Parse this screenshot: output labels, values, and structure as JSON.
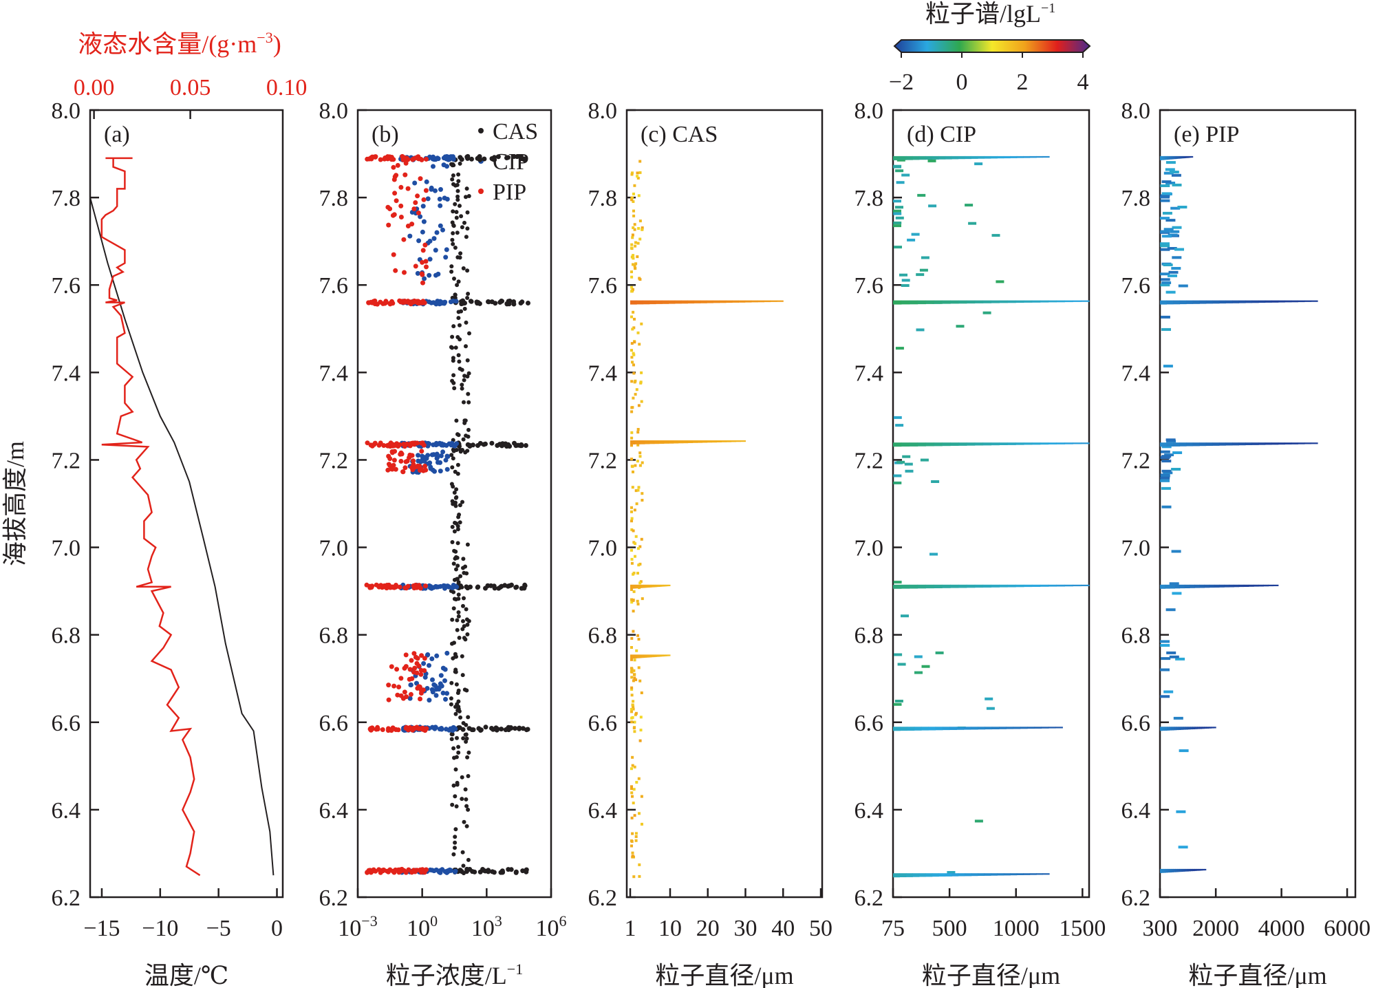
{
  "figure": {
    "ylabel": "海拔高度/m",
    "y_ticks": [
      "8.0",
      "7.8",
      "7.6",
      "7.4",
      "7.2",
      "7.0",
      "6.8",
      "6.6",
      "6.4",
      "6.2"
    ],
    "colorbar": {
      "title": "粒子谱/lgL",
      "title_sup": "−1",
      "ticks": [
        "−2",
        "0",
        "2",
        "4"
      ],
      "range": [
        -2,
        4
      ],
      "colors": [
        "#1f3f99",
        "#2aa8e0",
        "#2fa84f",
        "#f4e82a",
        "#f0a21c",
        "#e0201c",
        "#4b2a8c"
      ]
    }
  },
  "chart_data": [
    {
      "id": "a",
      "type": "line",
      "panel_label": "(a)",
      "xlabel": "温度/℃",
      "x_ticks": [
        "−15",
        "−10",
        "−5",
        "0"
      ],
      "xlim": [
        -16,
        0.5
      ],
      "ylim": [
        6.2,
        8.0
      ],
      "top_axis": {
        "label": "液态水含量/(g·m",
        "label_sup": "−3",
        "label_end": ")",
        "ticks": [
          "0.00",
          "0.05",
          "0.10"
        ],
        "xlim": [
          -0.002,
          0.098
        ],
        "color": "#e2231a"
      },
      "series": [
        {
          "name": "温度",
          "color": "#231f20",
          "points": [
            [
              -16,
              7.8
            ],
            [
              -14.5,
              7.65
            ],
            [
              -13,
              7.52
            ],
            [
              -11.5,
              7.4
            ],
            [
              -10,
              7.3
            ],
            [
              -8.8,
              7.24
            ],
            [
              -7.5,
              7.15
            ],
            [
              -6.3,
              7.02
            ],
            [
              -5.3,
              6.91
            ],
            [
              -4.4,
              6.78
            ],
            [
              -3,
              6.62
            ],
            [
              -2,
              6.58
            ],
            [
              -1.3,
              6.45
            ],
            [
              -0.6,
              6.35
            ],
            [
              -0.3,
              6.25
            ]
          ]
        },
        {
          "name": "液态水含量",
          "color": "#e2231a",
          "axis": "top",
          "points": [
            [
              0.006,
              7.89
            ],
            [
              0.02,
              7.89
            ],
            [
              0.01,
              7.89
            ],
            [
              0.01,
              7.87
            ],
            [
              0.016,
              7.86
            ],
            [
              0.016,
              7.82
            ],
            [
              0.012,
              7.82
            ],
            [
              0.012,
              7.78
            ],
            [
              0.01,
              7.77
            ],
            [
              0.006,
              7.76
            ],
            [
              0.004,
              7.75
            ],
            [
              0.004,
              7.71
            ],
            [
              0.008,
              7.7
            ],
            [
              0.016,
              7.68
            ],
            [
              0.016,
              7.65
            ],
            [
              0.012,
              7.64
            ],
            [
              0.015,
              7.63
            ],
            [
              0.01,
              7.62
            ],
            [
              0.008,
              7.59
            ],
            [
              0.008,
              7.57
            ],
            [
              0.012,
              7.565
            ],
            [
              0.006,
              7.56
            ],
            [
              0.016,
              7.56
            ],
            [
              0.01,
              7.55
            ],
            [
              0.014,
              7.53
            ],
            [
              0.016,
              7.49
            ],
            [
              0.012,
              7.48
            ],
            [
              0.012,
              7.42
            ],
            [
              0.02,
              7.39
            ],
            [
              0.016,
              7.37
            ],
            [
              0.016,
              7.33
            ],
            [
              0.02,
              7.31
            ],
            [
              0.014,
              7.3
            ],
            [
              0.012,
              7.26
            ],
            [
              0.025,
              7.24
            ],
            [
              0.004,
              7.235
            ],
            [
              0.028,
              7.23
            ],
            [
              0.022,
              7.2
            ],
            [
              0.024,
              7.18
            ],
            [
              0.02,
              7.16
            ],
            [
              0.028,
              7.12
            ],
            [
              0.03,
              7.08
            ],
            [
              0.026,
              7.06
            ],
            [
              0.026,
              7.02
            ],
            [
              0.032,
              7.0
            ],
            [
              0.03,
              6.98
            ],
            [
              0.028,
              6.95
            ],
            [
              0.03,
              6.92
            ],
            [
              0.022,
              6.91
            ],
            [
              0.04,
              6.91
            ],
            [
              0.03,
              6.9
            ],
            [
              0.036,
              6.85
            ],
            [
              0.034,
              6.82
            ],
            [
              0.04,
              6.8
            ],
            [
              0.036,
              6.77
            ],
            [
              0.03,
              6.74
            ],
            [
              0.04,
              6.72
            ],
            [
              0.044,
              6.68
            ],
            [
              0.038,
              6.64
            ],
            [
              0.044,
              6.61
            ],
            [
              0.04,
              6.58
            ],
            [
              0.05,
              6.585
            ],
            [
              0.046,
              6.56
            ],
            [
              0.05,
              6.52
            ],
            [
              0.052,
              6.47
            ],
            [
              0.05,
              6.44
            ],
            [
              0.046,
              6.4
            ],
            [
              0.052,
              6.35
            ],
            [
              0.05,
              6.3
            ],
            [
              0.048,
              6.27
            ],
            [
              0.055,
              6.25
            ]
          ]
        }
      ]
    },
    {
      "id": "b",
      "type": "scatter",
      "panel_label": "(b)",
      "xlabel": "粒子浓度/L",
      "xlabel_sup": "−1",
      "x_ticks": [
        "10⁻³",
        "10⁰",
        "10³",
        "10⁶"
      ],
      "x_log": true,
      "xlim": [
        -3,
        6
      ],
      "ylim": [
        6.2,
        8.0
      ],
      "legend": [
        "CAS",
        "CIP",
        "PIP"
      ],
      "legend_position": "top-right",
      "series": [
        {
          "name": "CAS",
          "color": "#231f20",
          "log10_x_center": 1.7,
          "log10_x_spread": 0.5
        },
        {
          "name": "CIP",
          "color": "#1f4ea3",
          "log10_x_center": 0.3,
          "log10_x_spread": 0.9
        },
        {
          "name": "PIP",
          "color": "#e2231a",
          "log10_x_center": -0.7,
          "log10_x_spread": 0.9
        }
      ],
      "cloud_layers": [
        7.89,
        7.56,
        7.235,
        6.91,
        6.585,
        6.26
      ],
      "scattered_ranges": [
        [
          7.6,
          7.88
        ],
        [
          6.65,
          6.76
        ],
        [
          7.17,
          7.22
        ]
      ]
    },
    {
      "id": "c",
      "type": "heatmap",
      "panel_label": "(c) CAS",
      "xlabel": "粒子直径/μm",
      "x_ticks": [
        "1",
        "10",
        "20",
        "30",
        "40",
        "50"
      ],
      "xlim": [
        1,
        50
      ],
      "ylim": [
        6.2,
        8.0
      ],
      "bands": [
        {
          "y": 7.56,
          "xmax": 40,
          "value": 2.0
        },
        {
          "y": 7.24,
          "xmax": 30,
          "value": 1.7
        },
        {
          "y": 6.91,
          "xmax": 10,
          "value": 1.6
        },
        {
          "y": 6.75,
          "xmax": 10,
          "value": 1.6
        }
      ],
      "typical_value": 1.6
    },
    {
      "id": "d",
      "type": "heatmap",
      "panel_label": "(d) CIP",
      "xlabel": "粒子直径/μm",
      "x_ticks": [
        "75",
        "500",
        "1000",
        "1500"
      ],
      "xlim": [
        75,
        1550
      ],
      "ylim": [
        6.2,
        8.0
      ],
      "bands": [
        {
          "y": 7.89,
          "xmax": 1250,
          "value": -0.8
        },
        {
          "y": 7.56,
          "xmax": 1550,
          "value": -0.6
        },
        {
          "y": 7.235,
          "xmax": 1550,
          "value": -0.7
        },
        {
          "y": 6.91,
          "xmax": 1550,
          "value": -0.8
        },
        {
          "y": 6.585,
          "xmax": 1350,
          "value": -1.3
        },
        {
          "y": 6.25,
          "xmax": 1250,
          "value": -1.2
        }
      ],
      "typical_value": -0.5
    },
    {
      "id": "e",
      "type": "heatmap",
      "panel_label": "(e) PIP",
      "xlabel": "粒子直径/μm",
      "x_ticks": [
        "300",
        "2000",
        "4000",
        "6000"
      ],
      "xlim": [
        300,
        6250
      ],
      "ylim": [
        6.2,
        8.0
      ],
      "bands": [
        {
          "y": 7.89,
          "xmax": 1300,
          "value": -1.7
        },
        {
          "y": 7.56,
          "xmax": 5100,
          "value": -1.8
        },
        {
          "y": 7.235,
          "xmax": 5100,
          "value": -1.8
        },
        {
          "y": 6.91,
          "xmax": 3900,
          "value": -1.8
        },
        {
          "y": 6.585,
          "xmax": 2000,
          "value": -1.8
        },
        {
          "y": 6.26,
          "xmax": 1700,
          "value": -1.8
        }
      ],
      "typical_value": -1.2
    }
  ]
}
